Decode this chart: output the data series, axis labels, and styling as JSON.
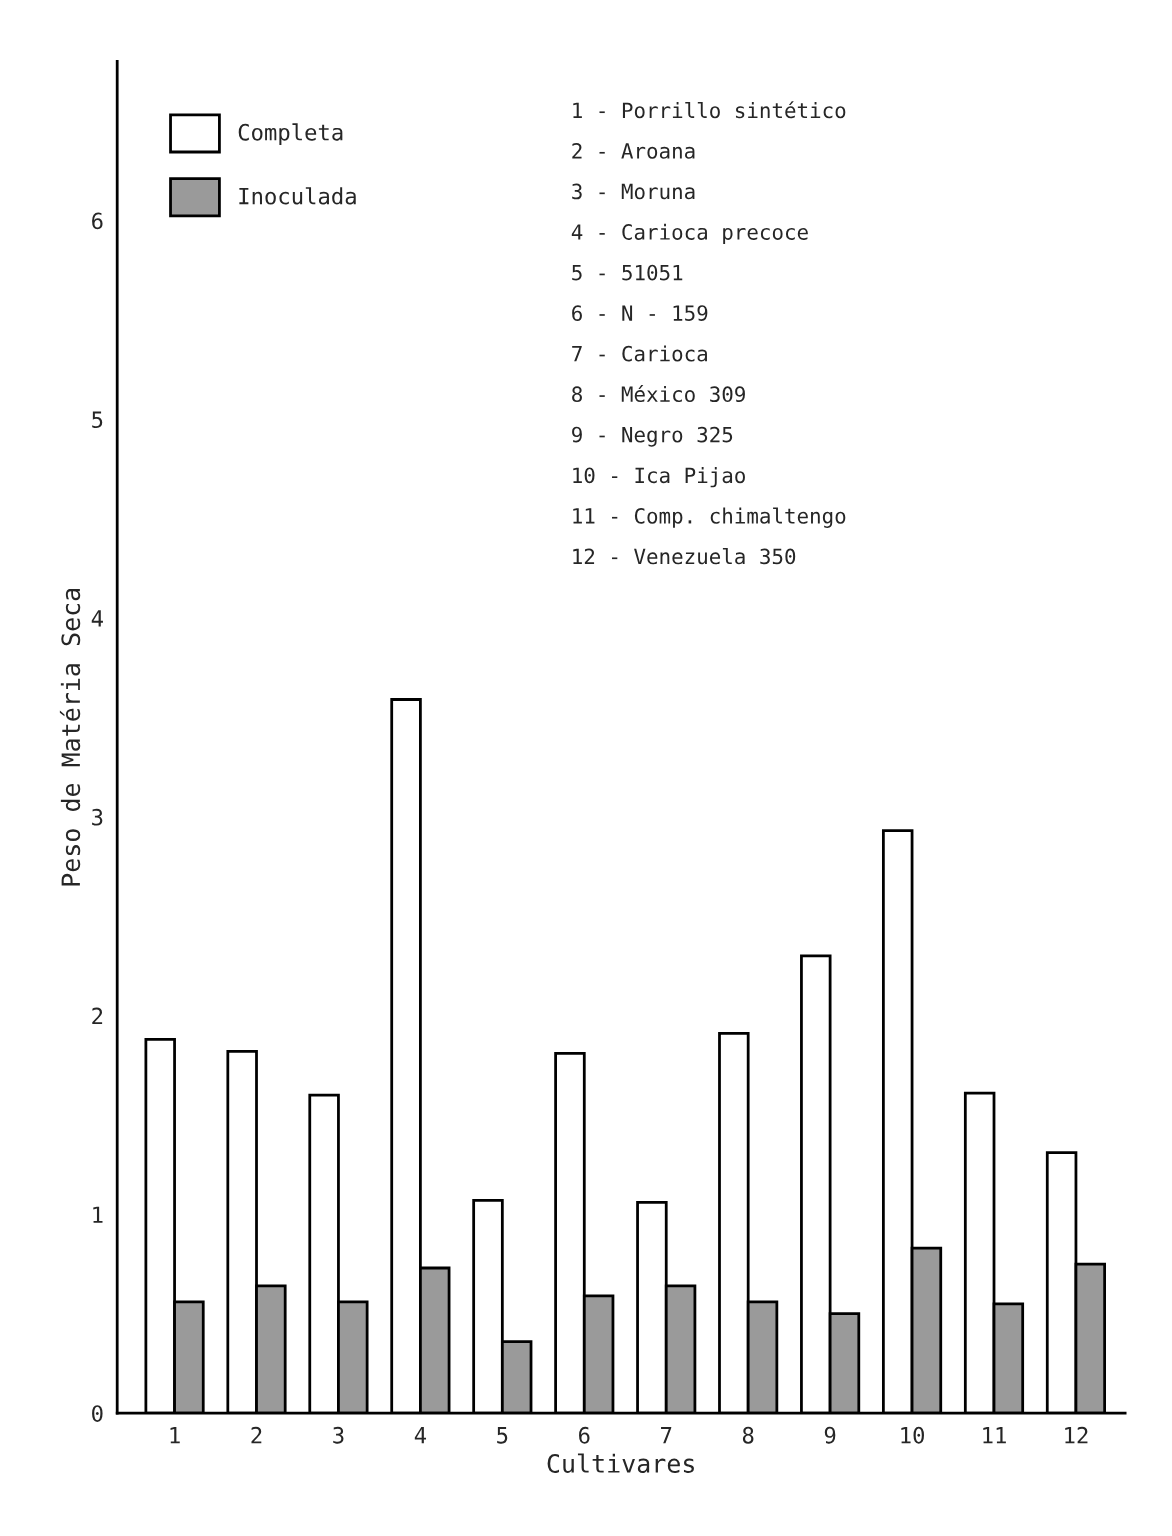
{
  "chart_data": {
    "type": "bar",
    "xlabel": "Cultivares",
    "ylabel": "Peso de Matéria Seca",
    "categories": [
      "1",
      "2",
      "3",
      "4",
      "5",
      "6",
      "7",
      "8",
      "9",
      "10",
      "11",
      "12"
    ],
    "series": [
      {
        "name": "Completa",
        "color": "#ffffff",
        "values": [
          1.88,
          1.82,
          1.6,
          3.59,
          1.07,
          1.81,
          1.06,
          1.91,
          2.3,
          2.93,
          1.61,
          1.31
        ]
      },
      {
        "name": "Inoculada",
        "color": "#9a9a9a",
        "values": [
          0.56,
          0.64,
          0.56,
          0.73,
          0.36,
          0.59,
          0.64,
          0.56,
          0.5,
          0.83,
          0.55,
          0.75
        ]
      }
    ],
    "ylim": [
      0,
      6.8
    ],
    "yticks": [
      0,
      1,
      2,
      3,
      4,
      5,
      6
    ],
    "grid": false,
    "legend": "top left",
    "annotations": [
      "1 - Porrillo sintético",
      "2 - Aroana",
      "3 - Moruna",
      "4 - Carioca precoce",
      "5 - 51051",
      "6 - N - 159",
      "7 - Carioca",
      "8 - México 309",
      "9 - Negro 325",
      "10 - Ica Pijao",
      "11 - Comp. chimaltengo",
      "12 - Venezuela 350"
    ]
  }
}
